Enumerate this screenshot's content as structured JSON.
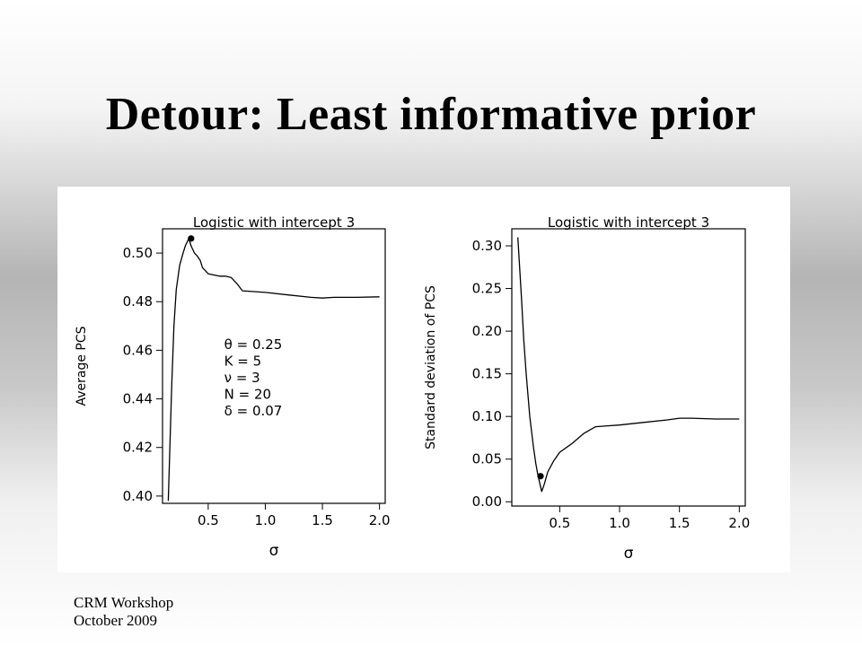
{
  "slide": {
    "title": "Detour: Least informative prior",
    "footer_line1": "CRM Workshop",
    "footer_line2": "October 2009"
  },
  "chart_data": [
    {
      "type": "line",
      "title": "Logistic with intercept 3",
      "xlabel": "σ",
      "ylabel": "Average PCS",
      "xlim": [
        0.1,
        2.05
      ],
      "ylim": [
        0.397,
        0.51
      ],
      "xticks": [
        "0.5",
        "1.0",
        "1.5",
        "2.0"
      ],
      "yticks": [
        "0.40",
        "0.42",
        "0.44",
        "0.46",
        "0.48",
        "0.50"
      ],
      "xtick_values": [
        0.5,
        1.0,
        1.5,
        2.0
      ],
      "ytick_values": [
        0.4,
        0.42,
        0.44,
        0.46,
        0.48,
        0.5
      ],
      "grid": false,
      "x": [
        0.15,
        0.18,
        0.2,
        0.22,
        0.25,
        0.28,
        0.3,
        0.33,
        0.35,
        0.38,
        0.4,
        0.43,
        0.45,
        0.5,
        0.55,
        0.6,
        0.65,
        0.7,
        0.75,
        0.8,
        1.0,
        1.2,
        1.4,
        1.5,
        1.6,
        1.8,
        2.0
      ],
      "values": [
        0.398,
        0.445,
        0.47,
        0.485,
        0.495,
        0.5,
        0.503,
        0.506,
        0.503,
        0.5,
        0.499,
        0.497,
        0.494,
        0.4915,
        0.491,
        0.4905,
        0.4905,
        0.49,
        0.4875,
        0.4845,
        0.4838,
        0.4828,
        0.4818,
        0.4815,
        0.4818,
        0.4818,
        0.482
      ],
      "marker": {
        "x": 0.35,
        "y": 0.506
      },
      "annotation": [
        "θ = 0.25",
        "K = 5",
        "ν = 3",
        "N = 20",
        "δ = 0.07"
      ]
    },
    {
      "type": "line",
      "title": "Logistic with intercept 3",
      "xlabel": "σ",
      "ylabel": "Standard deviation of PCS",
      "xlim": [
        0.1,
        2.05
      ],
      "ylim": [
        -0.005,
        0.32
      ],
      "xticks": [
        "0.5",
        "1.0",
        "1.5",
        "2.0"
      ],
      "yticks": [
        "0.00",
        "0.05",
        "0.10",
        "0.15",
        "0.20",
        "0.25",
        "0.30"
      ],
      "xtick_values": [
        0.5,
        1.0,
        1.5,
        2.0
      ],
      "ytick_values": [
        0.0,
        0.05,
        0.1,
        0.15,
        0.2,
        0.25,
        0.3
      ],
      "grid": false,
      "x": [
        0.15,
        0.18,
        0.2,
        0.22,
        0.25,
        0.28,
        0.3,
        0.32,
        0.35,
        0.37,
        0.4,
        0.45,
        0.5,
        0.6,
        0.7,
        0.8,
        0.9,
        1.0,
        1.2,
        1.4,
        1.5,
        1.6,
        1.8,
        2.0
      ],
      "values": [
        0.31,
        0.24,
        0.19,
        0.15,
        0.1,
        0.065,
        0.045,
        0.03,
        0.012,
        0.02,
        0.035,
        0.048,
        0.058,
        0.068,
        0.08,
        0.088,
        0.089,
        0.09,
        0.093,
        0.096,
        0.098,
        0.098,
        0.097,
        0.097
      ],
      "marker": {
        "x": 0.34,
        "y": 0.03
      }
    }
  ]
}
